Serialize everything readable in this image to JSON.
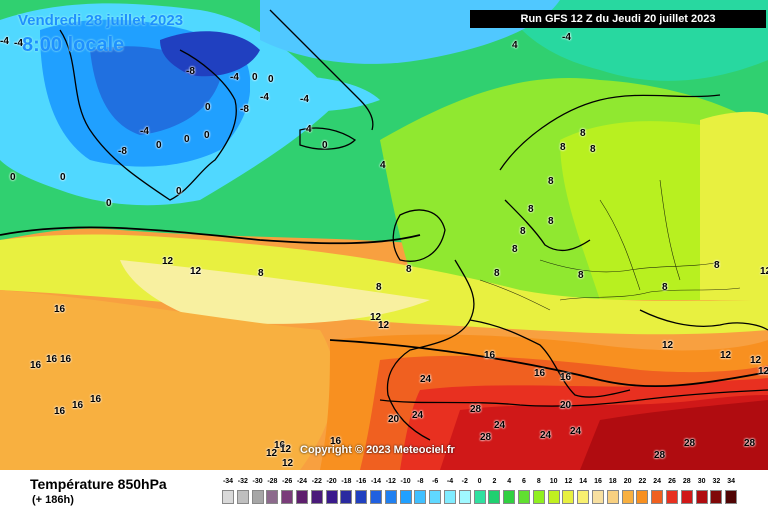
{
  "header": {
    "date_title": "Vendredi 28 juillet 2023",
    "time_title": "8:00 locale",
    "run_info": "Run GFS 12 Z du Jeudi 20 juillet 2023"
  },
  "map": {
    "copyright": "Copyright © 2023 Meteociel.fr",
    "labels": [
      {
        "text": "-4",
        "dark": false
      },
      {
        "text": "-4",
        "dark": false
      },
      {
        "text": "-8",
        "dark": false
      },
      {
        "text": "-8",
        "dark": false
      },
      {
        "text": "-4",
        "dark": false
      },
      {
        "text": "-4",
        "dark": false
      },
      {
        "text": "-8",
        "dark": false
      },
      {
        "text": "-4",
        "dark": false
      },
      {
        "text": "0",
        "dark": false
      },
      {
        "text": "0",
        "dark": false
      },
      {
        "text": "0",
        "dark": false
      },
      {
        "text": "0",
        "dark": false
      },
      {
        "text": "0",
        "dark": false
      },
      {
        "text": "0",
        "dark": false
      },
      {
        "text": "0",
        "dark": false
      },
      {
        "text": "0",
        "dark": false
      },
      {
        "text": "0",
        "dark": false
      },
      {
        "text": "0",
        "dark": false
      },
      {
        "text": "-4",
        "dark": false
      },
      {
        "text": "-4",
        "dark": false
      },
      {
        "text": "0",
        "dark": false
      },
      {
        "text": "4",
        "dark": false
      },
      {
        "text": "4",
        "dark": false
      },
      {
        "text": "4",
        "dark": false
      },
      {
        "text": "12",
        "dark": false
      },
      {
        "text": "12",
        "dark": false
      },
      {
        "text": "8",
        "dark": false
      },
      {
        "text": "8",
        "dark": false
      },
      {
        "text": "8",
        "dark": false
      },
      {
        "text": "12",
        "dark": false
      },
      {
        "text": "12",
        "dark": false
      },
      {
        "text": "8",
        "dark": false
      },
      {
        "text": "8",
        "dark": false
      },
      {
        "text": "8",
        "dark": false
      },
      {
        "text": "8",
        "dark": false
      },
      {
        "text": "8",
        "dark": false
      },
      {
        "text": "8",
        "dark": false
      },
      {
        "text": "8",
        "dark": false
      },
      {
        "text": "8",
        "dark": false
      },
      {
        "text": "8",
        "dark": false
      },
      {
        "text": "8",
        "dark": false
      },
      {
        "text": "12",
        "dark": false
      },
      {
        "text": "12",
        "dark": false
      },
      {
        "text": "12",
        "dark": false
      },
      {
        "text": "16",
        "dark": false
      },
      {
        "text": "16",
        "dark": false
      },
      {
        "text": "16",
        "dark": false
      },
      {
        "text": "16",
        "dark": false
      },
      {
        "text": "16",
        "dark": false
      },
      {
        "text": "16",
        "dark": false
      },
      {
        "text": "16",
        "dark": false
      },
      {
        "text": "16",
        "dark": false
      },
      {
        "text": "16",
        "dark": false
      },
      {
        "text": "16",
        "dark": false
      },
      {
        "text": "16",
        "dark": false
      },
      {
        "text": "16",
        "dark": false
      },
      {
        "text": "12",
        "dark": false
      },
      {
        "text": "12",
        "dark": false
      },
      {
        "text": "12",
        "dark": false
      },
      {
        "text": "24",
        "dark": false
      },
      {
        "text": "20",
        "dark": false
      },
      {
        "text": "24",
        "dark": false
      },
      {
        "text": "28",
        "dark": false
      },
      {
        "text": "24",
        "dark": false
      },
      {
        "text": "28",
        "dark": false
      },
      {
        "text": "24",
        "dark": false
      },
      {
        "text": "20",
        "dark": false
      },
      {
        "text": "24",
        "dark": false
      },
      {
        "text": "28",
        "dark": false
      },
      {
        "text": "28",
        "dark": false
      },
      {
        "text": "28",
        "dark": false
      },
      {
        "text": "12",
        "dark": false
      },
      {
        "text": "12",
        "dark": false
      },
      {
        "text": "8",
        "dark": false
      },
      {
        "text": "8",
        "dark": false
      }
    ]
  },
  "legend": {
    "title": "Température 850hPa",
    "lead": "(+ 186h)",
    "ticks": [
      "-34",
      "-32",
      "-30",
      "-28",
      "-26",
      "-24",
      "-22",
      "-20",
      "-18",
      "-16",
      "-14",
      "-12",
      "-10",
      "-8",
      "-6",
      "-4",
      "-2",
      "0",
      "2",
      "4",
      "6",
      "8",
      "10",
      "12",
      "14",
      "16",
      "18",
      "20",
      "22",
      "24",
      "26",
      "28",
      "30",
      "32",
      "34"
    ],
    "colors": [
      "#d9d9d9",
      "#bfbfbf",
      "#a6a6a6",
      "#8c6a8c",
      "#7a3d7a",
      "#5e1f6e",
      "#4a1a7a",
      "#3a1a8c",
      "#2a2aa0",
      "#2040c0",
      "#2060e0",
      "#2080f0",
      "#20a0ff",
      "#40c0ff",
      "#60d8ff",
      "#80ecff",
      "#a0f8ff",
      "#30e0a0",
      "#20d070",
      "#30d040",
      "#60e030",
      "#90f020",
      "#c0f020",
      "#e8f040",
      "#f8f070",
      "#f8e0a0",
      "#f8d080",
      "#f8b040",
      "#f89020",
      "#f06020",
      "#e83020",
      "#d01818",
      "#b00c10",
      "#800808",
      "#500404"
    ]
  }
}
